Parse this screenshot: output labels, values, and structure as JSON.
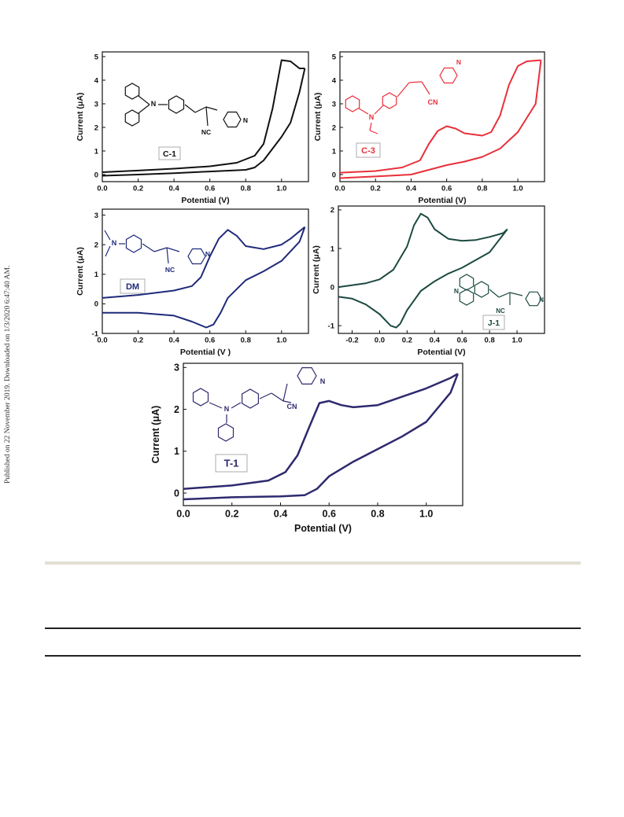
{
  "watermark": "Published on 22 November 2019. Downloaded on 1/3/2020 6:47:40 AM.",
  "chart_data": [
    {
      "type": "line",
      "panel_label": "C-1",
      "color": "#111111",
      "xlabel": "Potential (V)",
      "ylabel": "Current (μA)",
      "xlim": [
        0.0,
        1.15
      ],
      "ylim": [
        -0.3,
        5.2
      ],
      "xticks": [
        0.0,
        0.2,
        0.4,
        0.6,
        0.8,
        1.0
      ],
      "xtick_labels": [
        "0.0",
        "0.2",
        "0.4",
        "0.6",
        "0.8",
        "1.0"
      ],
      "yticks": [
        0,
        1,
        2,
        3,
        4,
        5
      ],
      "ytick_labels": [
        "0",
        "1",
        "2",
        "3",
        "4",
        "5"
      ],
      "structure_labels": [
        "NC"
      ],
      "series": [
        {
          "x": [
            0.0,
            0.2,
            0.4,
            0.6,
            0.75,
            0.85,
            0.9,
            0.95,
            1.0,
            1.05,
            1.1,
            1.13
          ],
          "y": [
            0.1,
            0.17,
            0.25,
            0.35,
            0.5,
            0.8,
            1.3,
            2.8,
            4.85,
            4.8,
            4.5,
            4.5
          ]
        },
        {
          "x": [
            1.13,
            1.1,
            1.05,
            1.0,
            0.95,
            0.9,
            0.85,
            0.8,
            0.6,
            0.4,
            0.2,
            0.0
          ],
          "y": [
            4.5,
            3.5,
            2.2,
            1.6,
            1.1,
            0.6,
            0.3,
            0.2,
            0.13,
            0.06,
            0.0,
            -0.05
          ]
        }
      ]
    },
    {
      "type": "line",
      "panel_label": "C-3",
      "color": "#e8303a",
      "xlabel": "Potential (V)",
      "ylabel": "Current (μA)",
      "xlim": [
        0.0,
        1.15
      ],
      "ylim": [
        -0.3,
        5.2
      ],
      "xticks": [
        0.0,
        0.2,
        0.4,
        0.6,
        0.8,
        1.0
      ],
      "xtick_labels": [
        "0.0",
        "0.2",
        "0.4",
        "0.6",
        "0.8",
        "1.0"
      ],
      "yticks": [
        0,
        1,
        2,
        3,
        4,
        5
      ],
      "ytick_labels": [
        "0",
        "1",
        "2",
        "3",
        "4",
        "5"
      ],
      "structure_labels": [
        "N",
        "CN",
        "N"
      ],
      "series": [
        {
          "x": [
            0.0,
            0.2,
            0.35,
            0.45,
            0.5,
            0.55,
            0.6,
            0.65,
            0.7,
            0.8,
            0.85,
            0.9,
            0.95,
            1.0,
            1.05,
            1.13
          ],
          "y": [
            0.08,
            0.15,
            0.3,
            0.6,
            1.3,
            1.85,
            2.05,
            1.95,
            1.75,
            1.65,
            1.8,
            2.5,
            3.8,
            4.6,
            4.8,
            4.85
          ]
        },
        {
          "x": [
            1.13,
            1.1,
            1.0,
            0.9,
            0.8,
            0.7,
            0.6,
            0.5,
            0.4,
            0.2,
            0.0
          ],
          "y": [
            4.85,
            3.0,
            1.8,
            1.1,
            0.75,
            0.55,
            0.4,
            0.2,
            0.0,
            -0.08,
            -0.15
          ]
        }
      ]
    },
    {
      "type": "line",
      "panel_label": "DM",
      "color": "#1f2a7a",
      "xlabel": "Potential (V )",
      "ylabel": "Current (μA)",
      "xlim": [
        0.0,
        1.15
      ],
      "ylim": [
        -1.0,
        3.2
      ],
      "xticks": [
        0.0,
        0.2,
        0.4,
        0.6,
        0.8,
        1.0
      ],
      "xtick_labels": [
        "0.0",
        "0.2",
        "0.4",
        "0.6",
        "0.8",
        "1.0"
      ],
      "yticks": [
        -1,
        0,
        1,
        2,
        3
      ],
      "ytick_labels": [
        "-1",
        "0",
        "1",
        "2",
        "3"
      ],
      "structure_labels": [
        "N",
        "NC",
        "N"
      ],
      "series": [
        {
          "x": [
            0.0,
            0.2,
            0.4,
            0.5,
            0.55,
            0.6,
            0.65,
            0.7,
            0.75,
            0.8,
            0.9,
            1.0,
            1.05,
            1.1,
            1.13
          ],
          "y": [
            0.2,
            0.3,
            0.45,
            0.6,
            0.9,
            1.6,
            2.2,
            2.5,
            2.3,
            1.95,
            1.85,
            2.0,
            2.2,
            2.45,
            2.6
          ]
        },
        {
          "x": [
            1.13,
            1.1,
            1.0,
            0.9,
            0.8,
            0.7,
            0.66,
            0.62,
            0.58,
            0.5,
            0.4,
            0.2,
            0.0
          ],
          "y": [
            2.6,
            2.1,
            1.45,
            1.1,
            0.8,
            0.2,
            -0.3,
            -0.7,
            -0.8,
            -0.6,
            -0.4,
            -0.3,
            -0.3
          ]
        }
      ]
    },
    {
      "type": "line",
      "panel_label": "J-1",
      "color": "#1c4a42",
      "xlabel": "Potential (V)",
      "ylabel": "Current (μA)",
      "xlim": [
        -0.3,
        1.2
      ],
      "ylim": [
        -1.2,
        2.1
      ],
      "xticks": [
        -0.2,
        0.0,
        0.2,
        0.4,
        0.6,
        0.8,
        1.0
      ],
      "xtick_labels": [
        "-0.2",
        "0.0",
        "0.2",
        "0.4",
        "0.6",
        "0.8",
        "1.0"
      ],
      "yticks": [
        -1,
        0,
        1,
        2
      ],
      "ytick_labels": [
        "-1",
        "0",
        "1",
        "2"
      ],
      "structure_labels": [
        "N",
        "NC",
        "N"
      ],
      "series": [
        {
          "x": [
            -0.3,
            -0.1,
            0.0,
            0.1,
            0.2,
            0.25,
            0.3,
            0.35,
            0.4,
            0.5,
            0.6,
            0.7,
            0.8,
            0.9,
            0.93
          ],
          "y": [
            0.0,
            0.1,
            0.2,
            0.45,
            1.05,
            1.6,
            1.9,
            1.8,
            1.5,
            1.25,
            1.2,
            1.22,
            1.3,
            1.4,
            1.5
          ]
        },
        {
          "x": [
            0.93,
            0.8,
            0.6,
            0.5,
            0.4,
            0.3,
            0.2,
            0.15,
            0.12,
            0.08,
            0.0,
            -0.1,
            -0.2,
            -0.3
          ],
          "y": [
            1.5,
            0.9,
            0.5,
            0.35,
            0.15,
            -0.1,
            -0.6,
            -0.95,
            -1.05,
            -1.0,
            -0.7,
            -0.45,
            -0.3,
            -0.25
          ]
        }
      ]
    },
    {
      "type": "line",
      "panel_label": "T-1",
      "color": "#2e2a6e",
      "xlabel": "Potential (V)",
      "ylabel": "Current (μA)",
      "xlim": [
        0.0,
        1.15
      ],
      "ylim": [
        -0.3,
        3.1
      ],
      "xticks": [
        0.0,
        0.2,
        0.4,
        0.6,
        0.8,
        1.0
      ],
      "xtick_labels": [
        "0.0",
        "0.2",
        "0.4",
        "0.6",
        "0.8",
        "1.0"
      ],
      "yticks": [
        0,
        1,
        2,
        3
      ],
      "ytick_labels": [
        "0",
        "1",
        "2",
        "3"
      ],
      "structure_labels": [
        "N",
        "N",
        "CN"
      ],
      "series": [
        {
          "x": [
            0.0,
            0.2,
            0.35,
            0.42,
            0.47,
            0.52,
            0.56,
            0.6,
            0.65,
            0.7,
            0.8,
            0.9,
            1.0,
            1.1,
            1.13
          ],
          "y": [
            0.1,
            0.18,
            0.3,
            0.5,
            0.9,
            1.6,
            2.15,
            2.2,
            2.1,
            2.05,
            2.1,
            2.3,
            2.5,
            2.75,
            2.85
          ]
        },
        {
          "x": [
            1.13,
            1.1,
            1.0,
            0.9,
            0.8,
            0.7,
            0.6,
            0.55,
            0.5,
            0.4,
            0.2,
            0.0
          ],
          "y": [
            2.85,
            2.4,
            1.7,
            1.35,
            1.05,
            0.75,
            0.4,
            0.1,
            -0.05,
            -0.08,
            -0.1,
            -0.15
          ]
        }
      ]
    }
  ]
}
